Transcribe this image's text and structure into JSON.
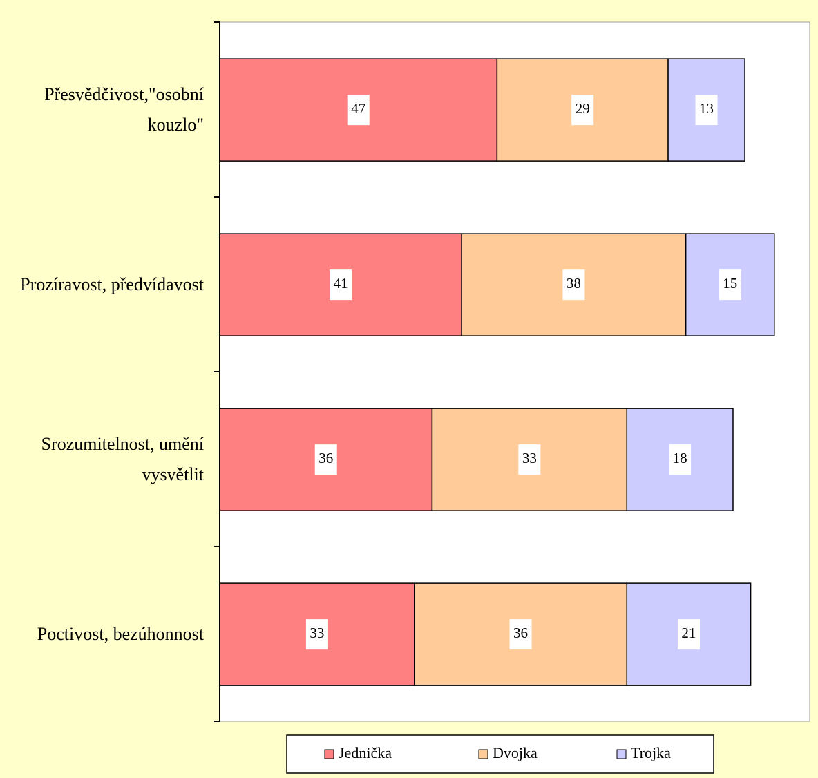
{
  "chart_data": {
    "type": "stacked-bar-horizontal",
    "categories": [
      "Přesvědčivost,\"osobní kouzlo\"",
      "Prozíravost, předvídavost",
      "Srozumitelnost, umění vysvětlit",
      "Poctivost, bezúhonnost"
    ],
    "series": [
      {
        "name": "Jednička",
        "color": "#ff8080",
        "values": [
          47,
          41,
          36,
          33
        ]
      },
      {
        "name": "Dvojka",
        "color": "#ffcc99",
        "values": [
          29,
          38,
          33,
          36
        ]
      },
      {
        "name": "Trojka",
        "color": "#ccccff",
        "values": [
          13,
          15,
          18,
          21
        ]
      }
    ],
    "xlim": [
      0,
      100
    ],
    "legend": "bottom"
  }
}
